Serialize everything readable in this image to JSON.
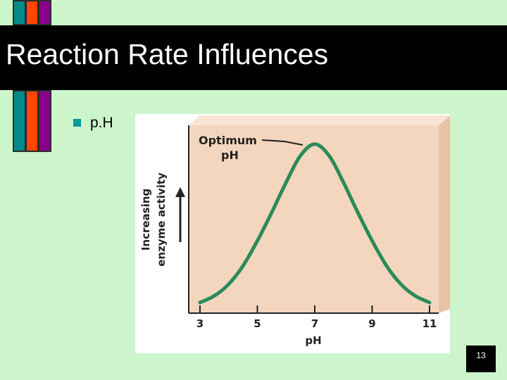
{
  "slide": {
    "title": "Reaction Rate Influences",
    "bullet": "p.H",
    "page_number": "13",
    "colors": {
      "background": "#ccf5cc",
      "title_bar": "#000000",
      "stripe_teal": "#008b8b",
      "stripe_red": "#ff4500",
      "stripe_purple": "#8b008b",
      "bullet": "#009a9a"
    }
  },
  "chart_data": {
    "type": "line",
    "title": "",
    "xlabel": "pH",
    "ylabel_lines": [
      "Increasing",
      "enzyme activity"
    ],
    "x_ticks": [
      "3",
      "5",
      "7",
      "9",
      "11"
    ],
    "xlim": [
      3,
      11
    ],
    "ylim": [
      0,
      1
    ],
    "y_ticks": [],
    "annotation": [
      "Optimum",
      "pH"
    ],
    "optimum_x": 7,
    "series": [
      {
        "color": "#2b8a5a",
        "x": [
          3,
          3.5,
          4,
          4.5,
          5,
          5.5,
          6,
          6.5,
          7,
          7.5,
          8,
          8.5,
          9,
          9.5,
          10,
          10.5,
          11
        ],
        "y": [
          0.03,
          0.07,
          0.14,
          0.25,
          0.4,
          0.57,
          0.75,
          0.91,
          0.98,
          0.91,
          0.75,
          0.57,
          0.4,
          0.25,
          0.14,
          0.07,
          0.03
        ]
      }
    ],
    "grid": false,
    "background": "#f3d6bd"
  }
}
